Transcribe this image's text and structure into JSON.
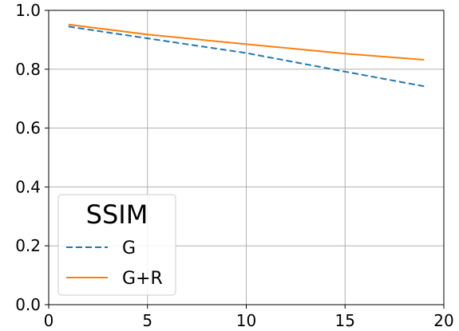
{
  "chart_data": {
    "type": "line",
    "title": "",
    "xlabel": "",
    "ylabel": "",
    "xlim": [
      0,
      20
    ],
    "ylim": [
      0.0,
      1.0
    ],
    "x_ticks": [
      0,
      5,
      10,
      15,
      20
    ],
    "x_tick_labels": [
      "0",
      "5",
      "10",
      "15",
      "20"
    ],
    "y_ticks": [
      0.0,
      0.2,
      0.4,
      0.6,
      0.8,
      1.0
    ],
    "y_tick_labels": [
      "0.0",
      "0.2",
      "0.4",
      "0.6",
      "0.8",
      "1.0"
    ],
    "grid": true,
    "legend": {
      "title": "SSIM",
      "placement": "lower-left"
    },
    "series": [
      {
        "name": "G",
        "color": "#1f77b4",
        "style": "dashed",
        "x": [
          1,
          5,
          10,
          15,
          19
        ],
        "y": [
          0.945,
          0.905,
          0.855,
          0.792,
          0.742
        ]
      },
      {
        "name": "G+R",
        "color": "#ff7f0e",
        "style": "solid",
        "x": [
          1,
          5,
          10,
          15,
          19
        ],
        "y": [
          0.952,
          0.918,
          0.885,
          0.853,
          0.832
        ]
      }
    ]
  }
}
